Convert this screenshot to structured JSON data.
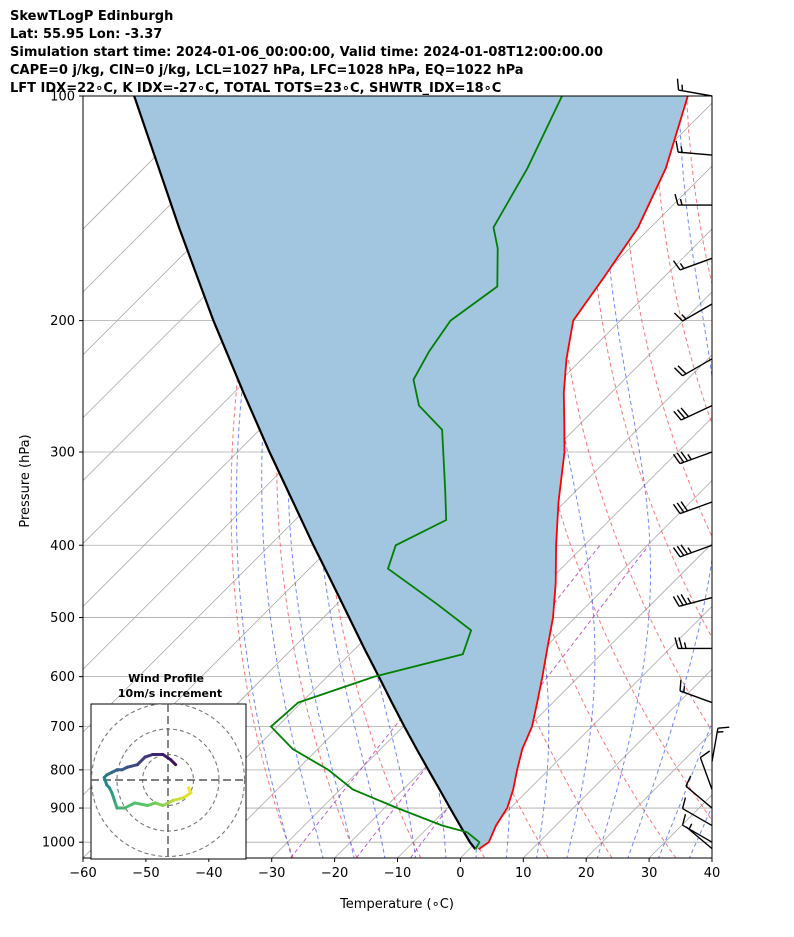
{
  "header": {
    "line1": "SkewTLogP Edinburgh",
    "line2": "Lat: 55.95   Lon: -3.37",
    "line3": "Simulation start time: 2024-01-06_00:00:00, Valid time: 2024-01-08T12:00:00.00",
    "line4": "CAPE=0 j/kg, CIN=0 j/kg, LCL=1027 hPa, LFC=1028 hPa, EQ=1022 hPa",
    "line5": "LFT IDX=22∘C, K IDX=-27∘C, TOTAL TOTS=23∘C, SHWTR_IDX=18∘C"
  },
  "chart_data": {
    "type": "line",
    "subtype": "skew-t log-p",
    "xlabel": "Temperature (∘C)",
    "ylabel": "Pressure (hPa)",
    "xlim": [
      -60,
      40
    ],
    "ylim": [
      1050,
      100
    ],
    "yscale": "log",
    "grid": true,
    "x_ticks": [
      "−60",
      "−50",
      "−40",
      "−30",
      "−20",
      "−10",
      "0",
      "10",
      "20",
      "30",
      "40"
    ],
    "x_tick_values": [
      -60,
      -50,
      -40,
      -30,
      -20,
      -10,
      0,
      10,
      20,
      30,
      40
    ],
    "y_ticks": [
      100,
      200,
      300,
      400,
      500,
      600,
      700,
      800,
      900,
      1000
    ],
    "colors": {
      "temperature": "#ff0000",
      "dewpoint": "#008000",
      "parcel": "#000000",
      "fill": "#a2c6df",
      "dry_adiabat": "#ff5555",
      "moist_adiabat": "#3355ff",
      "mixing_ratio": "#aa33cc",
      "isotherm": "#aaaaaa",
      "hodograph_ring": "#777777"
    },
    "series": [
      {
        "name": "temperature",
        "p": [
          1022,
          1000,
          950,
          900,
          850,
          800,
          750,
          700,
          650,
          600,
          550,
          500,
          450,
          400,
          350,
          300,
          275,
          250,
          225,
          200,
          175,
          150,
          125,
          100
        ],
        "t": [
          1.5,
          2.0,
          0.5,
          -0.5,
          -2.5,
          -5.0,
          -7.5,
          -9.5,
          -12.5,
          -15.8,
          -19.5,
          -23.5,
          -28.5,
          -34.5,
          -41.0,
          -48.0,
          -52.5,
          -57.5,
          -62.5,
          -67.5,
          -69.5,
          -72.0,
          -77.0,
          -85.0
        ]
      },
      {
        "name": "dewpoint",
        "p": [
          1022,
          1000,
          970,
          950,
          900,
          850,
          800,
          750,
          700,
          650,
          600,
          560,
          520,
          480,
          430,
          400,
          370,
          340,
          310,
          280,
          260,
          240,
          220,
          200,
          180,
          160,
          150,
          125,
          100
        ],
        "t": [
          1.0,
          0.5,
          -3.0,
          -8.0,
          -18.0,
          -28.0,
          -35.0,
          -44.0,
          -51.0,
          -50.5,
          -42.5,
          -32.0,
          -34.5,
          -44.0,
          -57.5,
          -60.0,
          -56.0,
          -60.5,
          -65.5,
          -71.0,
          -78.5,
          -83.5,
          -85.5,
          -87.0,
          -85.0,
          -91.0,
          -95.0,
          -99.0,
          -105.0
        ]
      },
      {
        "name": "parcel",
        "p": [
          1022,
          1000,
          950,
          900,
          850,
          800,
          750,
          700,
          650,
          600,
          550,
          500,
          450,
          400,
          350,
          300,
          250,
          200,
          150,
          100
        ],
        "t": [
          1.0,
          -1.0,
          -5.2,
          -9.6,
          -14.2,
          -19.1,
          -24.3,
          -29.8,
          -35.6,
          -41.8,
          -48.6,
          -55.9,
          -64.0,
          -73.1,
          -83.2,
          -94.9,
          -108.4,
          -124.7,
          -145.0,
          -173.0
        ]
      }
    ],
    "wind_barbs": [
      {
        "p": 1020,
        "speed_kt": 5,
        "dir_deg": 310
      },
      {
        "p": 1000,
        "speed_kt": 10,
        "dir_deg": 300
      },
      {
        "p": 950,
        "speed_kt": 10,
        "dir_deg": 300
      },
      {
        "p": 900,
        "speed_kt": 10,
        "dir_deg": 310
      },
      {
        "p": 850,
        "speed_kt": 10,
        "dir_deg": 340
      },
      {
        "p": 780,
        "speed_kt": 15,
        "dir_deg": 10
      },
      {
        "p": 650,
        "speed_kt": 15,
        "dir_deg": 290
      },
      {
        "p": 550,
        "speed_kt": 25,
        "dir_deg": 270
      },
      {
        "p": 470,
        "speed_kt": 35,
        "dir_deg": 255
      },
      {
        "p": 400,
        "speed_kt": 35,
        "dir_deg": 250
      },
      {
        "p": 350,
        "speed_kt": 30,
        "dir_deg": 250
      },
      {
        "p": 300,
        "speed_kt": 35,
        "dir_deg": 250
      },
      {
        "p": 260,
        "speed_kt": 30,
        "dir_deg": 245
      },
      {
        "p": 225,
        "speed_kt": 20,
        "dir_deg": 240
      },
      {
        "p": 190,
        "speed_kt": 15,
        "dir_deg": 240
      },
      {
        "p": 165,
        "speed_kt": 15,
        "dir_deg": 250
      },
      {
        "p": 140,
        "speed_kt": 15,
        "dir_deg": 270
      },
      {
        "p": 120,
        "speed_kt": 15,
        "dir_deg": 275
      },
      {
        "p": 100,
        "speed_kt": 15,
        "dir_deg": 280
      }
    ],
    "hodograph": {
      "title": "Wind Profile",
      "subtitle": "10m/s increment",
      "rings_ms": [
        10,
        20,
        30
      ],
      "u": [
        8,
        9,
        6,
        2,
        0,
        -2,
        -5,
        -8,
        -13,
        -17,
        -20,
        -21,
        -22,
        -23,
        -24,
        -25,
        -24,
        -22,
        -20,
        -18,
        -16,
        -12,
        -9,
        -6,
        -2,
        1,
        3
      ],
      "v": [
        -3,
        -5,
        -7,
        -8,
        -9,
        -10,
        -9,
        -10,
        -9,
        -11,
        -11,
        -8,
        -5,
        -3,
        -2,
        1,
        2,
        3,
        4,
        4,
        5,
        6,
        9,
        10,
        10,
        8,
        6
      ]
    }
  }
}
